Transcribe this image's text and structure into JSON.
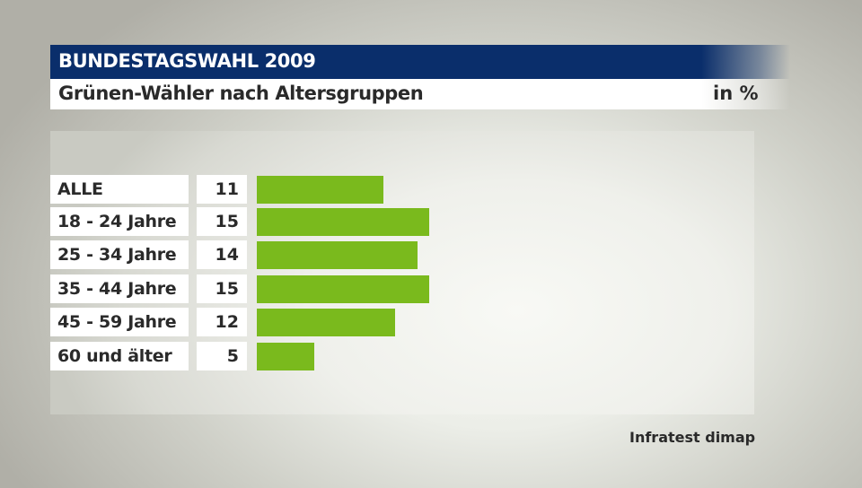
{
  "header": {
    "title": "BUNDESTAGSWAHL 2009",
    "subtitle": "Grünen-Wähler nach Altersgruppen",
    "unit": "in %"
  },
  "colors": {
    "title_bar": "#0a2e6b",
    "bar": "#7aba1d",
    "text": "#2a2a2a"
  },
  "rows": [
    {
      "label": "ALLE",
      "value": "11"
    },
    {
      "label": "18 - 24 Jahre",
      "value": "15"
    },
    {
      "label": "25 - 34 Jahre",
      "value": "14"
    },
    {
      "label": "35 - 44 Jahre",
      "value": "15"
    },
    {
      "label": "45 - 59 Jahre",
      "value": "12"
    },
    {
      "label": "60 und älter",
      "value": "5"
    }
  ],
  "source": "Infratest dimap",
  "chart_data": {
    "type": "bar",
    "orientation": "horizontal",
    "title": "BUNDESTAGSWAHL 2009",
    "subtitle": "Grünen-Wähler nach Altersgruppen",
    "unit": "in %",
    "categories": [
      "ALLE",
      "18 - 24 Jahre",
      "25 - 34 Jahre",
      "35 - 44 Jahre",
      "45 - 59 Jahre",
      "60 und älter"
    ],
    "values": [
      11,
      15,
      14,
      15,
      12,
      5
    ],
    "xlabel": "",
    "ylabel": "",
    "grid": false,
    "legend": null,
    "source": "Infratest dimap"
  }
}
